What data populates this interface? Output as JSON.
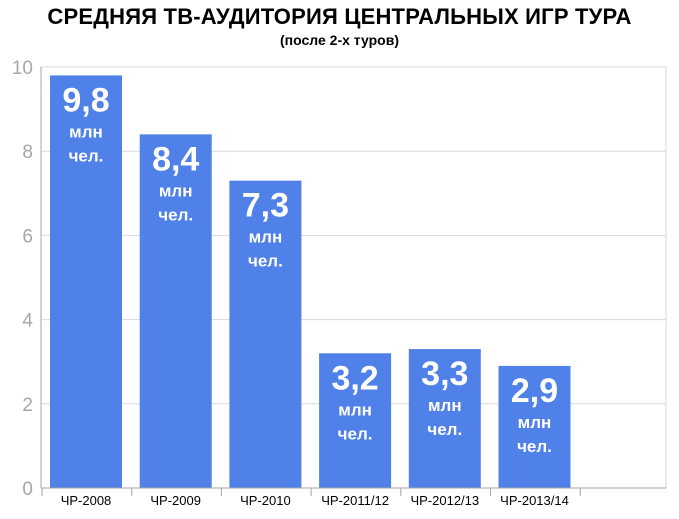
{
  "chart_data": {
    "type": "bar",
    "title": "СРЕДНЯЯ ТВ-АУДИТОРИЯ ЦЕНТРАЛЬНЫХ ИГР ТУРА",
    "subtitle": "(после 2-х туров)",
    "categories": [
      "ЧР-2008",
      "ЧР-2009",
      "ЧР-2010",
      "ЧР-2011/12",
      "ЧР-2012/13",
      "ЧР-2013/14"
    ],
    "values": [
      9.8,
      8.4,
      7.3,
      3.2,
      3.3,
      2.9
    ],
    "data_labels": [
      "9,8",
      "8,4",
      "7,3",
      "3,2",
      "3,3",
      "2,9"
    ],
    "unit_label_lines": [
      "млн",
      "чел."
    ],
    "ylim": [
      0,
      10
    ],
    "yticks": [
      0,
      2,
      4,
      6,
      8,
      10
    ],
    "grid": true,
    "bar_color": "#4f81e8",
    "grid_color": "#d9d9d9",
    "tick_color": "#a6a6a6"
  }
}
